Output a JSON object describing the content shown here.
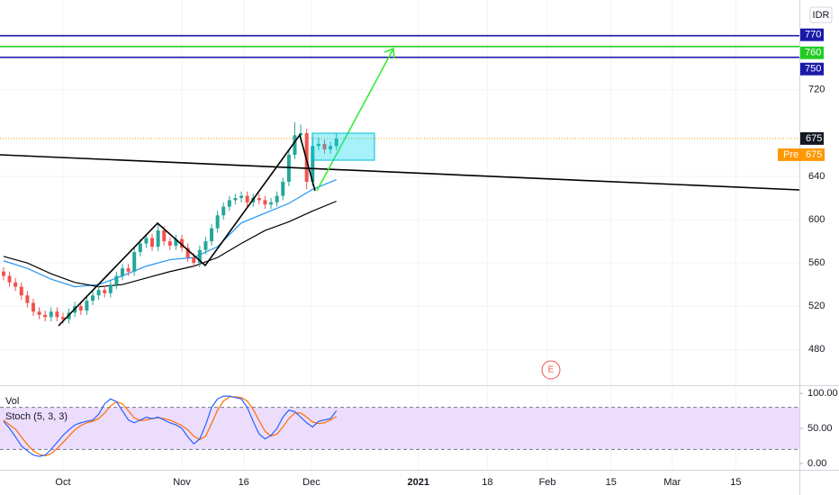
{
  "chart_data": {
    "type": "candlestick",
    "currency": "IDR",
    "open": [
      552,
      548,
      542,
      538,
      530,
      523,
      515,
      512,
      510,
      515,
      510,
      508,
      514,
      520,
      516,
      525,
      530,
      535,
      532,
      540,
      548,
      555,
      552,
      570,
      578,
      583,
      575,
      590,
      580,
      576,
      582,
      574,
      565,
      560,
      572,
      580,
      592,
      604,
      612,
      618,
      620,
      622,
      616,
      620,
      618,
      614,
      616,
      622,
      635,
      660,
      678,
      680,
      635,
      668,
      670,
      665,
      668
    ],
    "high": [
      556,
      552,
      546,
      542,
      534,
      527,
      519,
      516,
      519,
      519,
      514,
      518,
      524,
      524,
      529,
      534,
      539,
      539,
      544,
      552,
      559,
      559,
      574,
      582,
      587,
      587,
      597,
      594,
      584,
      586,
      586,
      578,
      569,
      576,
      584,
      596,
      608,
      616,
      622,
      624,
      626,
      626,
      624,
      624,
      622,
      620,
      626,
      639,
      664,
      690,
      688,
      684,
      676,
      676,
      674,
      672,
      680
    ],
    "low": [
      544,
      538,
      534,
      526,
      519,
      511,
      508,
      506,
      506,
      506,
      504,
      504,
      510,
      512,
      512,
      521,
      526,
      528,
      528,
      536,
      544,
      548,
      548,
      566,
      574,
      571,
      571,
      576,
      572,
      572,
      570,
      561,
      556,
      556,
      568,
      576,
      588,
      600,
      608,
      614,
      616,
      612,
      612,
      614,
      610,
      610,
      612,
      618,
      631,
      656,
      674,
      628,
      631,
      664,
      661,
      661,
      664
    ],
    "close": [
      548,
      542,
      538,
      530,
      523,
      515,
      512,
      510,
      515,
      510,
      508,
      514,
      520,
      516,
      525,
      530,
      535,
      532,
      540,
      548,
      555,
      552,
      570,
      578,
      583,
      575,
      590,
      580,
      576,
      582,
      574,
      565,
      560,
      572,
      580,
      592,
      604,
      612,
      618,
      620,
      622,
      616,
      620,
      618,
      614,
      616,
      622,
      635,
      660,
      678,
      680,
      635,
      668,
      670,
      665,
      668,
      675
    ],
    "up_color": "#26a69a",
    "down_color": "#ef5350",
    "xlim": [
      -0.6,
      133.9
    ],
    "xticks": [
      {
        "value": 10,
        "label": "Oct"
      },
      {
        "value": 30,
        "label": "Nov"
      },
      {
        "value": 40.4,
        "label": "16"
      },
      {
        "value": 51.8,
        "label": "Dec"
      },
      {
        "value": 69.8,
        "label": "2021"
      },
      {
        "value": 81.4,
        "label": "18"
      },
      {
        "value": 91.5,
        "label": "Feb"
      },
      {
        "value": 102.2,
        "label": "15"
      },
      {
        "value": 112.5,
        "label": "Mar"
      },
      {
        "value": 123.2,
        "label": "15"
      }
    ],
    "ylim": [
      447,
      803
    ],
    "yticks": [
      480,
      520,
      560,
      600,
      640,
      720
    ],
    "grid": true,
    "moving_averages": [
      {
        "color": "#2196f3",
        "x": [
          0,
          4,
          8,
          12,
          16,
          20,
          24,
          28,
          32,
          36,
          40,
          44,
          48,
          52,
          56
        ],
        "values": [
          562,
          555,
          545,
          538,
          540,
          548,
          557,
          563,
          565,
          575,
          597,
          606,
          615,
          628,
          637
        ]
      },
      {
        "color": "#000000",
        "x": [
          0,
          4,
          8,
          12,
          16,
          20,
          24,
          28,
          32,
          36,
          40,
          44,
          48,
          52,
          56
        ],
        "values": [
          566,
          560,
          550,
          542,
          538,
          540,
          546,
          552,
          557,
          565,
          578,
          590,
          598,
          608,
          617
        ]
      }
    ],
    "levels": [
      {
        "value": 770,
        "color": "#1a1aa8"
      },
      {
        "value": 760,
        "color": "#22cc22"
      },
      {
        "value": 750,
        "color": "#1a1aa8"
      }
    ],
    "last_price": 675,
    "pre_label": "Pre",
    "pre_price": 675,
    "event_marker": "E",
    "volume_label": "Vol",
    "stochastic": {
      "label": "Stoch (5, 3, 3)",
      "ylim": [
        -9,
        109
      ],
      "yticks": [
        {
          "value": 100,
          "label": "100.00"
        },
        {
          "value": 50,
          "label": "50.00"
        },
        {
          "value": 0,
          "label": "0.00"
        }
      ],
      "band": [
        20,
        80
      ],
      "band_color": "#e7d4fb",
      "k": {
        "color": "#2962ff",
        "values": [
          60,
          50,
          38,
          25,
          18,
          12,
          10,
          12,
          20,
          30,
          40,
          48,
          55,
          58,
          60,
          62,
          70,
          85,
          92,
          88,
          75,
          62,
          58,
          62,
          66,
          64,
          66,
          62,
          58,
          55,
          50,
          38,
          28,
          35,
          55,
          80,
          92,
          96,
          96,
          94,
          92,
          80,
          60,
          42,
          35,
          40,
          50,
          66,
          76,
          74,
          66,
          58,
          52,
          60,
          62,
          64,
          75
        ]
      },
      "d": {
        "color": "#ff6d00",
        "values": [
          62,
          55,
          49,
          38,
          27,
          18,
          13,
          11,
          14,
          21,
          30,
          39,
          48,
          54,
          58,
          60,
          64,
          72,
          82,
          88,
          85,
          75,
          65,
          61,
          62,
          64,
          65,
          64,
          62,
          58,
          54,
          48,
          39,
          34,
          39,
          57,
          76,
          89,
          95,
          95,
          94,
          89,
          77,
          61,
          46,
          39,
          42,
          52,
          64,
          72,
          72,
          66,
          59,
          57,
          58,
          62,
          67
        ]
      }
    }
  }
}
